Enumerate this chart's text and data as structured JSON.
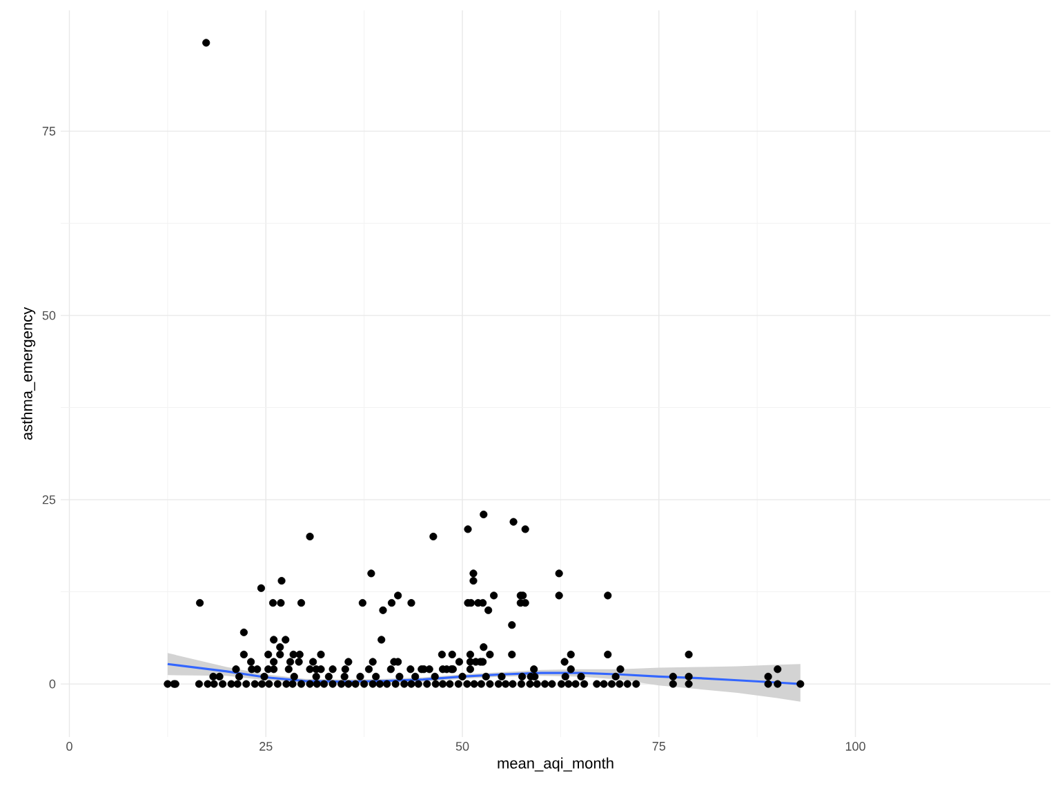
{
  "chart_data": {
    "type": "scatter",
    "xlabel": "mean_aqi_month",
    "ylabel": "asthma_emergency",
    "xlim": [
      -1.1,
      124.8
    ],
    "ylim": [
      -7.2,
      91.4
    ],
    "xticks": [
      0,
      25,
      50,
      75,
      100
    ],
    "yticks": [
      0,
      25,
      50,
      75
    ],
    "grid": true,
    "series": [
      {
        "type": "scatter",
        "marker": "circle",
        "color": "#000000",
        "x": [
          17.4,
          16.6,
          24.4,
          27.0,
          25.9,
          26.9,
          29.5,
          30.6,
          22.2,
          26.0,
          27.5,
          26.8,
          22.2,
          25.3,
          26.8,
          28.5,
          29.3,
          32.0,
          47.4,
          48.7,
          51.0,
          53.5,
          56.3,
          63.8,
          68.5,
          78.8,
          23.1,
          26.0,
          28.1,
          29.2,
          31.0,
          35.5,
          38.6,
          41.3,
          41.8,
          49.6,
          51.0,
          51.7,
          52.3,
          52.6,
          63.0,
          21.2,
          23.2,
          23.9,
          25.3,
          26.0,
          27.9,
          30.6,
          31.4,
          32.0,
          33.5,
          35.1,
          38.1,
          40.9,
          43.4,
          44.8,
          45.1,
          45.8,
          47.5,
          48.0,
          48.6,
          48.8,
          51.0,
          59.1,
          63.8,
          70.1,
          90.1,
          18.3,
          19.1,
          21.6,
          24.8,
          28.6,
          31.4,
          33.0,
          35.0,
          37.0,
          39.0,
          42.0,
          44.0,
          46.5,
          50.0,
          53.0,
          55.0,
          57.6,
          58.7,
          59.2,
          63.1,
          65.1,
          69.5,
          76.8,
          78.8,
          88.9,
          46.3,
          50.7,
          52.7,
          56.5,
          58.0,
          38.4,
          51.4,
          51.4,
          37.3,
          41.0,
          41.8,
          43.5,
          39.9,
          39.7,
          50.7,
          51.1,
          52.0,
          52.6,
          53.3,
          54.0,
          52.7,
          62.3,
          62.3,
          57.4,
          57.7,
          57.4,
          58.0,
          56.3,
          68.5,
          12.5,
          13.3,
          13.5,
          16.5,
          17.6,
          18.4,
          19.5,
          20.6,
          21.4,
          22.5,
          23.6,
          24.5,
          25.4,
          26.5,
          27.6,
          28.4,
          29.5,
          30.6,
          31.5,
          32.4,
          33.5,
          34.6,
          35.5,
          36.4,
          37.5,
          38.6,
          39.5,
          40.4,
          41.5,
          42.6,
          43.5,
          44.4,
          45.5,
          46.6,
          47.5,
          48.4,
          49.5,
          50.6,
          51.5,
          52.4,
          53.5,
          54.6,
          55.5,
          56.4,
          57.5,
          58.6,
          59.5,
          60.5,
          61.4,
          62.6,
          63.5,
          64.4,
          65.5,
          67.1,
          68.0,
          69.0,
          70.0,
          71.0,
          72.1,
          76.8,
          78.8,
          88.9,
          90.1,
          93.0
        ],
        "values": [
          87,
          11,
          13,
          14,
          11,
          11,
          11,
          20,
          7,
          6,
          6,
          5,
          4,
          4,
          4,
          4,
          4,
          4,
          4,
          4,
          4,
          4,
          4,
          4,
          4,
          4,
          3,
          3,
          3,
          3,
          3,
          3,
          3,
          3,
          3,
          3,
          3,
          3,
          3,
          3,
          3,
          2,
          2,
          2,
          2,
          2,
          2,
          2,
          2,
          2,
          2,
          2,
          2,
          2,
          2,
          2,
          2,
          2,
          2,
          2,
          2,
          2,
          2,
          2,
          2,
          2,
          2,
          1,
          1,
          1,
          1,
          1,
          1,
          1,
          1,
          1,
          1,
          1,
          1,
          1,
          1,
          1,
          1,
          1,
          1,
          1,
          1,
          1,
          1,
          1,
          1,
          1,
          20,
          21,
          23,
          22,
          21,
          15,
          15,
          14,
          11,
          11,
          12,
          11,
          10,
          6,
          11,
          11,
          11,
          11,
          10,
          12,
          5,
          15,
          12,
          12,
          12,
          11,
          11,
          8,
          12,
          0,
          0,
          0,
          0,
          0,
          0,
          0,
          0,
          0,
          0,
          0,
          0,
          0,
          0,
          0,
          0,
          0,
          0,
          0,
          0,
          0,
          0,
          0,
          0,
          0,
          0,
          0,
          0,
          0,
          0,
          0,
          0,
          0,
          0,
          0,
          0,
          0,
          0,
          0,
          0,
          0,
          0,
          0,
          0,
          0,
          0,
          0,
          0,
          0,
          0,
          0,
          0,
          0,
          0,
          0,
          0,
          0,
          0,
          0,
          0,
          0,
          0,
          0,
          0
        ]
      },
      {
        "type": "line",
        "marker": "none",
        "color": "#3366ff",
        "line_style": "solid",
        "x": [
          12.5,
          20,
          25,
          30,
          35,
          40,
          45,
          50,
          55,
          60,
          65,
          70,
          75,
          80,
          85,
          90,
          93
        ],
        "values": [
          2.7,
          1.7,
          0.9,
          0.4,
          0.3,
          0.4,
          0.6,
          1.0,
          1.3,
          1.5,
          1.5,
          1.3,
          1.0,
          0.8,
          0.5,
          0.2,
          0.0
        ],
        "lower": [
          1.2,
          1.1,
          0.5,
          0.1,
          0.0,
          0.1,
          0.3,
          0.7,
          1.0,
          1.1,
          1.0,
          0.6,
          -0.2,
          -0.7,
          -1.2,
          -1.9,
          -2.4
        ],
        "upper": [
          4.2,
          2.3,
          1.3,
          0.7,
          0.6,
          0.7,
          0.9,
          1.3,
          1.6,
          1.9,
          2.0,
          2.0,
          2.2,
          2.3,
          2.4,
          2.6,
          2.7
        ]
      }
    ]
  }
}
